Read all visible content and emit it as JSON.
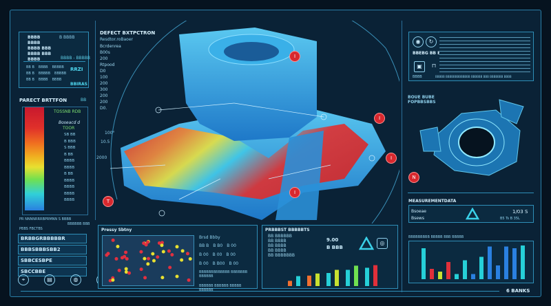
{
  "left": {
    "top_rows": [
      "BBBB",
      "BBBB",
      "BBBB BBB",
      "BBBB BBB",
      "BBBB"
    ],
    "top_right": "B BBBB",
    "top_tag": "BBBB - BBBBB",
    "table_rows": [
      [
        "BB B",
        "BBBB",
        "BBBBB"
      ],
      [
        "BB B",
        "BBBBB",
        "BBBBB"
      ],
      [
        "BB B",
        "BBBB",
        "BBBB"
      ]
    ],
    "badge1": "RRZI",
    "badge2": "BBIRAS",
    "legend_title": "PARECT BRTTFON",
    "legend_tag": "BB",
    "legend_head": "TOSSNB RDB",
    "legend_sub": "Boseacd d",
    "legend_green": "TOOR",
    "legend_values": [
      "SB BB",
      "B BBB",
      "S BBB",
      "B BB",
      "BBBB",
      "BBBB",
      "B BB",
      "BBBB",
      "BBBB",
      "BBBB",
      "BBBB"
    ],
    "legend_footer": "PR NNNNRRRBPRMNN S BBBB",
    "legend_note": "BBBBBB BBB",
    "list_title": "PBBS FBCTBS",
    "list_items": [
      "BRBBGRBBBBBR",
      "BBBSBBBSBB2",
      "SBBCESBPE",
      "SBCCBBE"
    ],
    "icons": [
      "location-icon",
      "document-icon",
      "badge-icon",
      "location-icon"
    ]
  },
  "center": {
    "title": "DEFECT BXTPCTRON",
    "subtitle": "Resdtor.roBaoer",
    "labels": [
      "Bcrdenrea",
      "B00s",
      "200",
      "Rtpood",
      "D0",
      "100",
      "200",
      "300",
      "200",
      "200",
      "D0."
    ],
    "axis_labels": [
      "100°",
      "10.5",
      "2000"
    ],
    "markers": [
      "I",
      "I",
      "I",
      "I",
      "T"
    ],
    "panel1_title": "Pressy Sbtny",
    "panel1_legend_title": "Brsd Bbby",
    "panel1_rows": [
      [
        "BB B",
        "B B0",
        "B 00"
      ],
      [
        "B 00",
        "B 00",
        "B 00"
      ],
      [
        "B 00",
        "B B00",
        "B 00"
      ]
    ],
    "panel1_note": "BBBBBBBBBBBBB BBBBBBB BBBBBB",
    "panel1_foot": "BBBBBB BBBBBB BBBBB BBBBBB",
    "panel2_title": "PRBBBST BBBBBTS",
    "panel2_rows": [
      "BB BBBBBB",
      "BB BBBB",
      "BB BBBB",
      "BB BBBB",
      "BB BBBBBBB"
    ],
    "panel2_value1": "9.00",
    "panel2_value2": "B BBB",
    "panel2_chart": [
      20,
      38,
      40,
      48,
      50,
      62,
      62,
      78,
      70,
      80
    ]
  },
  "right": {
    "top_label": "BBEBG BB BB",
    "top_foot": "BBBB",
    "top_footer_text": "BBBBB BBBBBBBBBBBBB BBBBBB BBB BBBBBBB BBBB",
    "table_rows": 10,
    "model_label1": "BOUE BUBE",
    "model_label2": "FOPBBSBBS",
    "marker": "N",
    "measure_title": "MEASUREMENTDATA",
    "measure_l1": "Bsoeae",
    "measure_l2": "Bsews",
    "measure_v1": "1/03 S",
    "measure_v2": "B5 Ts  B 35L",
    "chart_title": "BBBBBBBBB BBBBB BBB BBBBB",
    "bars": [
      {
        "v": 90,
        "c": "#26d0d8"
      },
      {
        "v": 30,
        "c": "#e0303a"
      },
      {
        "v": 22,
        "c": "#c8e030"
      },
      {
        "v": 50,
        "c": "#e0303a"
      },
      {
        "v": 15,
        "c": "#26d0d8"
      },
      {
        "v": 55,
        "c": "#26d0d8"
      },
      {
        "v": 15,
        "c": "#2a80e0"
      },
      {
        "v": 65,
        "c": "#26d0d8"
      },
      {
        "v": 95,
        "c": "#2a80e0"
      },
      {
        "v": 40,
        "c": "#2a80e0"
      },
      {
        "v": 95,
        "c": "#2a80e0"
      },
      {
        "v": 90,
        "c": "#2a80e0"
      },
      {
        "v": 98,
        "c": "#26d0d8"
      }
    ],
    "footer": "6 BANKS"
  },
  "colors": {
    "accent": "#2f8fb8",
    "defect": "#d8282e",
    "cyan": "#26d0d8"
  }
}
